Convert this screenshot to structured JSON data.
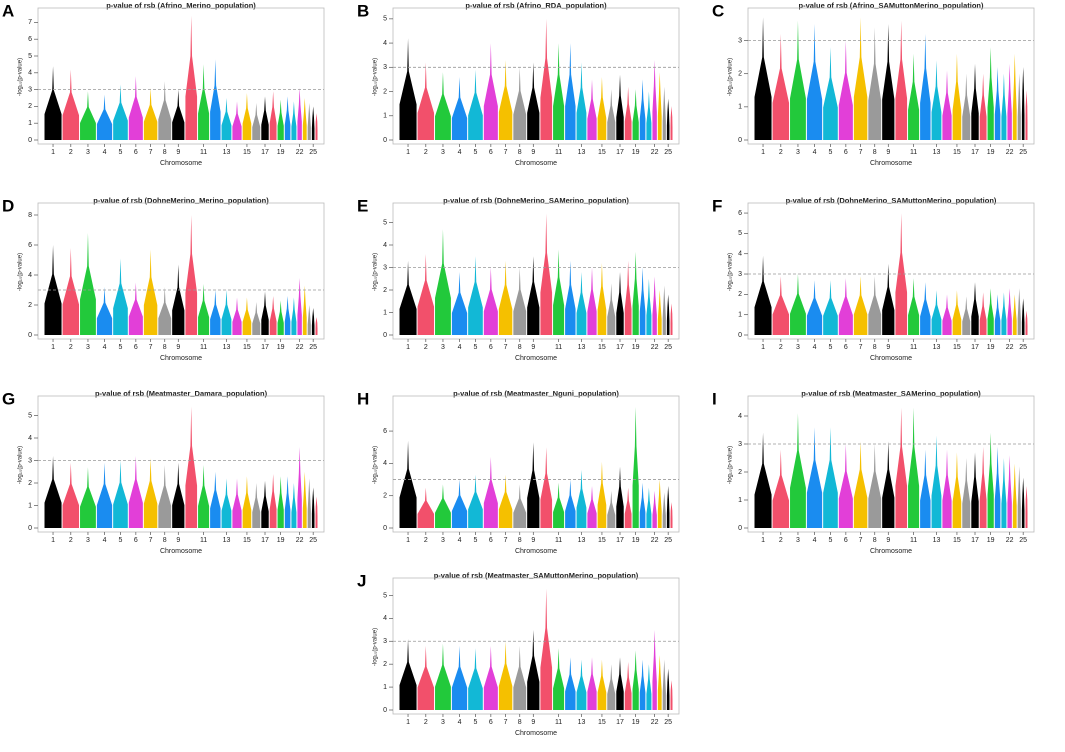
{
  "chart_data": [
    {
      "panel": "A",
      "type": "manhattan",
      "title": "p-value of rsb (Afrino_Merino_population)",
      "x_label": "Chromosome",
      "y_label": "-log₁₀(p-value)",
      "categories": [
        "1",
        "2",
        "3",
        "4",
        "5",
        "6",
        "7",
        "8",
        "9",
        null,
        "11",
        null,
        "13",
        null,
        "15",
        null,
        "17",
        null,
        "19",
        null,
        null,
        "22",
        null,
        null,
        "25",
        null
      ],
      "values": [
        4.4,
        4.2,
        2.9,
        2.7,
        3.3,
        3.8,
        3.1,
        3.5,
        3.0,
        7.4,
        4.5,
        4.8,
        2.5,
        2.3,
        2.8,
        2.2,
        2.6,
        2.9,
        2.4,
        2.6,
        2.3,
        3.1,
        2.5,
        2.2,
        2.0,
        1.6
      ],
      "ylim": [
        0,
        7.5
      ],
      "yticks": [
        0,
        1,
        2,
        3,
        4,
        5,
        6,
        7
      ],
      "threshold": 3
    },
    {
      "panel": "B",
      "type": "manhattan",
      "title": "p-value of rsb (Afrino_RDA_population)",
      "x_label": "Chromosome",
      "y_label": "-log₁₀(p-value)",
      "categories": [
        "1",
        "2",
        "3",
        "4",
        "5",
        "6",
        "7",
        "8",
        "9",
        null,
        "11",
        null,
        "13",
        null,
        "15",
        null,
        "17",
        null,
        "19",
        null,
        null,
        "22",
        null,
        null,
        "25",
        null
      ],
      "values": [
        4.2,
        3.2,
        2.8,
        2.6,
        2.9,
        4.0,
        3.3,
        3.0,
        3.2,
        5.0,
        4.0,
        4.0,
        3.2,
        2.5,
        2.6,
        2.1,
        2.7,
        2.2,
        2.1,
        2.5,
        2.0,
        3.3,
        2.8,
        2.2,
        1.7,
        1.4
      ],
      "ylim": [
        0,
        5.2
      ],
      "yticks": [
        0,
        1,
        2,
        3,
        4,
        5
      ],
      "threshold": 3
    },
    {
      "panel": "C",
      "type": "manhattan",
      "title": "p-value of rsb (Afrino_SAMuttonMerino_population)",
      "x_label": "Chromosome",
      "y_label": "-log₁₀(p-value)",
      "categories": [
        "1",
        "2",
        "3",
        "4",
        "5",
        "6",
        "7",
        "8",
        "9",
        null,
        "11",
        null,
        "13",
        null,
        "15",
        null,
        "17",
        null,
        "19",
        null,
        null,
        "22",
        null,
        null,
        "25",
        null
      ],
      "values": [
        3.7,
        3.2,
        3.6,
        3.5,
        2.8,
        3.0,
        3.7,
        3.4,
        3.5,
        3.6,
        2.6,
        3.2,
        2.4,
        2.1,
        2.6,
        2.0,
        2.3,
        2.0,
        2.8,
        2.2,
        2.0,
        2.3,
        2.6,
        2.0,
        2.2,
        1.5
      ],
      "ylim": [
        0,
        3.8
      ],
      "yticks": [
        0,
        1,
        2,
        3
      ],
      "threshold": 3
    },
    {
      "panel": "D",
      "type": "manhattan",
      "title": "p-value of rsb (DohneMerino_Merino_population)",
      "x_label": "Chromosome",
      "y_label": "-log₁₀(p-value)",
      "categories": [
        "1",
        "2",
        "3",
        "4",
        "5",
        "6",
        "7",
        "8",
        "9",
        null,
        "11",
        null,
        "13",
        null,
        "15",
        null,
        "17",
        null,
        "19",
        null,
        null,
        "22",
        null,
        null,
        "25",
        null
      ],
      "values": [
        6.0,
        5.8,
        6.8,
        3.2,
        5.1,
        3.5,
        5.7,
        3.2,
        4.7,
        8.0,
        3.4,
        3.0,
        3.0,
        2.5,
        2.5,
        2.2,
        2.9,
        2.6,
        2.3,
        2.6,
        2.5,
        3.8,
        3.3,
        2.0,
        1.8,
        1.2
      ],
      "ylim": [
        0,
        8.4
      ],
      "yticks": [
        0,
        2,
        4,
        6,
        8
      ],
      "threshold": 3
    },
    {
      "panel": "E",
      "type": "manhattan",
      "title": "p-value of rsb (DohneMerino_SAMerino_population)",
      "x_label": "Chromosome",
      "y_label": "-log₁₀(p-value)",
      "categories": [
        "1",
        "2",
        "3",
        "4",
        "5",
        "6",
        "7",
        "8",
        "9",
        null,
        "11",
        null,
        "13",
        null,
        "15",
        null,
        "17",
        null,
        "19",
        null,
        null,
        "22",
        null,
        null,
        "25",
        null
      ],
      "values": [
        3.3,
        3.6,
        4.7,
        2.8,
        3.5,
        3.0,
        3.3,
        3.0,
        3.5,
        5.4,
        3.8,
        3.3,
        2.8,
        3.0,
        3.2,
        2.3,
        2.8,
        3.3,
        3.7,
        3.0,
        2.5,
        2.6,
        2.0,
        2.2,
        1.8,
        1.4
      ],
      "ylim": [
        0,
        5.6
      ],
      "yticks": [
        0,
        1,
        2,
        3,
        4,
        5
      ],
      "threshold": 3
    },
    {
      "panel": "F",
      "type": "manhattan",
      "title": "p-value of rsb (DohneMerino_SAMuttonMerino_population)",
      "x_label": "Chromosome",
      "y_label": "-log₁₀(p-value)",
      "categories": [
        "1",
        "2",
        "3",
        "4",
        "5",
        "6",
        "7",
        "8",
        "9",
        null,
        "11",
        null,
        "13",
        null,
        "15",
        null,
        "17",
        null,
        "19",
        null,
        null,
        "22",
        null,
        null,
        "25",
        null
      ],
      "values": [
        3.9,
        2.9,
        3.0,
        2.7,
        2.7,
        2.8,
        2.9,
        2.9,
        3.5,
        6.0,
        2.8,
        2.6,
        2.2,
        2.0,
        2.2,
        1.9,
        2.6,
        2.1,
        2.3,
        2.0,
        2.1,
        2.3,
        2.0,
        2.3,
        1.8,
        1.2
      ],
      "ylim": [
        0,
        6.2
      ],
      "yticks": [
        0,
        1,
        2,
        3,
        4,
        5,
        6
      ],
      "threshold": 3
    },
    {
      "panel": "G",
      "type": "manhattan",
      "title": "p-value of rsb (Meatmaster_Damara_population)",
      "x_label": "Chromosome",
      "y_label": "-log₁₀(p-value)",
      "categories": [
        "1",
        "2",
        "3",
        "4",
        "5",
        "6",
        "7",
        "8",
        "9",
        null,
        "11",
        null,
        "13",
        null,
        "15",
        null,
        "17",
        null,
        "19",
        null,
        null,
        "22",
        null,
        null,
        "25",
        null
      ],
      "values": [
        3.2,
        2.9,
        2.7,
        2.9,
        3.0,
        3.2,
        3.1,
        2.8,
        2.9,
        5.4,
        2.8,
        2.5,
        2.2,
        2.2,
        2.3,
        2.0,
        2.1,
        2.4,
        2.3,
        2.3,
        2.0,
        3.6,
        2.5,
        2.2,
        1.8,
        1.4
      ],
      "ylim": [
        0,
        5.6
      ],
      "yticks": [
        0,
        1,
        2,
        3,
        4,
        5
      ],
      "threshold": 3
    },
    {
      "panel": "H",
      "type": "manhattan",
      "title": "p-value of rsb (Meatmaster_Nguni_population)",
      "x_label": "Chromosome",
      "y_label": "-log₁₀(p-value)",
      "categories": [
        "1",
        "2",
        "3",
        "4",
        "5",
        "6",
        "7",
        "8",
        "9",
        null,
        "11",
        null,
        "13",
        null,
        "15",
        null,
        "17",
        null,
        "19",
        null,
        null,
        "22",
        null,
        null,
        "25",
        null
      ],
      "values": [
        5.4,
        2.5,
        2.7,
        3.0,
        3.3,
        4.4,
        3.3,
        2.7,
        5.3,
        5.0,
        2.8,
        3.0,
        3.6,
        2.6,
        4.1,
        2.3,
        3.8,
        2.5,
        7.5,
        2.8,
        2.5,
        2.3,
        3.0,
        2.2,
        2.6,
        1.6
      ],
      "ylim": [
        0,
        7.8
      ],
      "yticks": [
        0,
        2,
        4,
        6
      ],
      "threshold": 3
    },
    {
      "panel": "I",
      "type": "manhattan",
      "title": "p-value of rsb (Meatmaster_SAMerino_population)",
      "x_label": "Chromosome",
      "y_label": "-log₁₀(p-value)",
      "categories": [
        "1",
        "2",
        "3",
        "4",
        "5",
        "6",
        "7",
        "8",
        "9",
        null,
        "11",
        null,
        "13",
        null,
        "15",
        null,
        "17",
        null,
        "19",
        null,
        null,
        "22",
        null,
        null,
        "25",
        null
      ],
      "values": [
        3.4,
        2.8,
        4.1,
        3.6,
        3.6,
        3.0,
        3.1,
        3.0,
        3.1,
        4.3,
        4.3,
        2.8,
        3.3,
        2.8,
        2.7,
        2.5,
        2.7,
        2.9,
        3.4,
        2.9,
        2.5,
        2.6,
        2.3,
        2.2,
        1.8,
        1.5
      ],
      "ylim": [
        0,
        4.5
      ],
      "yticks": [
        0,
        1,
        2,
        3,
        4
      ],
      "threshold": 3
    },
    {
      "panel": "J",
      "type": "manhattan",
      "title": "p-value of rsb (Meatmaster_SAMuttonMerino_population)",
      "x_label": "Chromosome",
      "y_label": "-log₁₀(p-value)",
      "categories": [
        "1",
        "2",
        "3",
        "4",
        "5",
        "6",
        "7",
        "8",
        "9",
        null,
        "11",
        null,
        "13",
        null,
        "15",
        null,
        "17",
        null,
        "19",
        null,
        null,
        "22",
        null,
        null,
        "25",
        null
      ],
      "values": [
        3.1,
        2.8,
        2.9,
        2.8,
        2.7,
        2.8,
        3.0,
        2.8,
        3.5,
        5.3,
        2.7,
        2.3,
        2.2,
        2.3,
        2.2,
        2.0,
        2.3,
        2.1,
        2.6,
        2.2,
        2.0,
        3.5,
        2.4,
        2.2,
        1.8,
        1.3
      ],
      "ylim": [
        0,
        5.5
      ],
      "yticks": [
        0,
        1,
        2,
        3,
        4,
        5
      ],
      "threshold": 3
    }
  ],
  "colors": [
    "#000000",
    "#f2506b",
    "#22c93b",
    "#1a8cf0",
    "#12b8d6",
    "#e23fd8",
    "#f5c000",
    "#9a9a9a"
  ]
}
